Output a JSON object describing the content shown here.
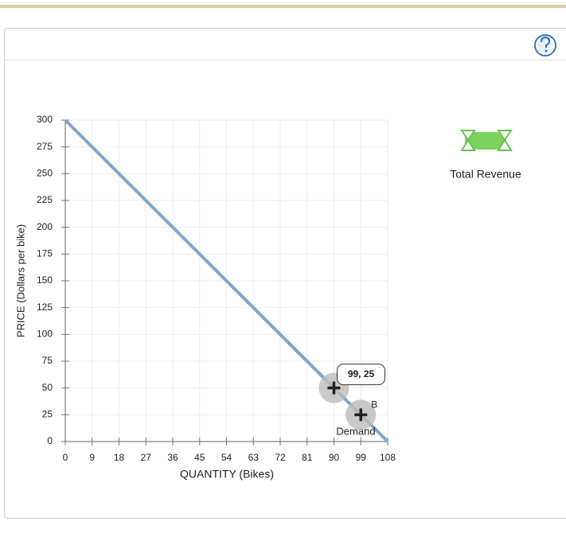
{
  "chart_data": {
    "type": "line",
    "x_label": "QUANTITY (Bikes)",
    "y_label": "PRICE (Dollars per bike)",
    "xlim": [
      0,
      108
    ],
    "ylim": [
      0,
      300
    ],
    "xticks": [
      0,
      9,
      18,
      27,
      36,
      45,
      54,
      63,
      72,
      81,
      90,
      99,
      108
    ],
    "yticks": [
      0,
      25,
      50,
      75,
      100,
      125,
      150,
      175,
      200,
      225,
      250,
      275,
      300
    ],
    "grid": true,
    "series": [
      {
        "name": "Demand",
        "color": "#7ea6cd",
        "x": [
          0,
          108
        ],
        "values": [
          300,
          0
        ]
      }
    ],
    "points": [
      {
        "x": 90,
        "y": 50
      },
      {
        "label": "B",
        "x": 99,
        "y": 25
      }
    ],
    "tooltip": "99, 25",
    "legend_tool": "Total Revenue"
  }
}
